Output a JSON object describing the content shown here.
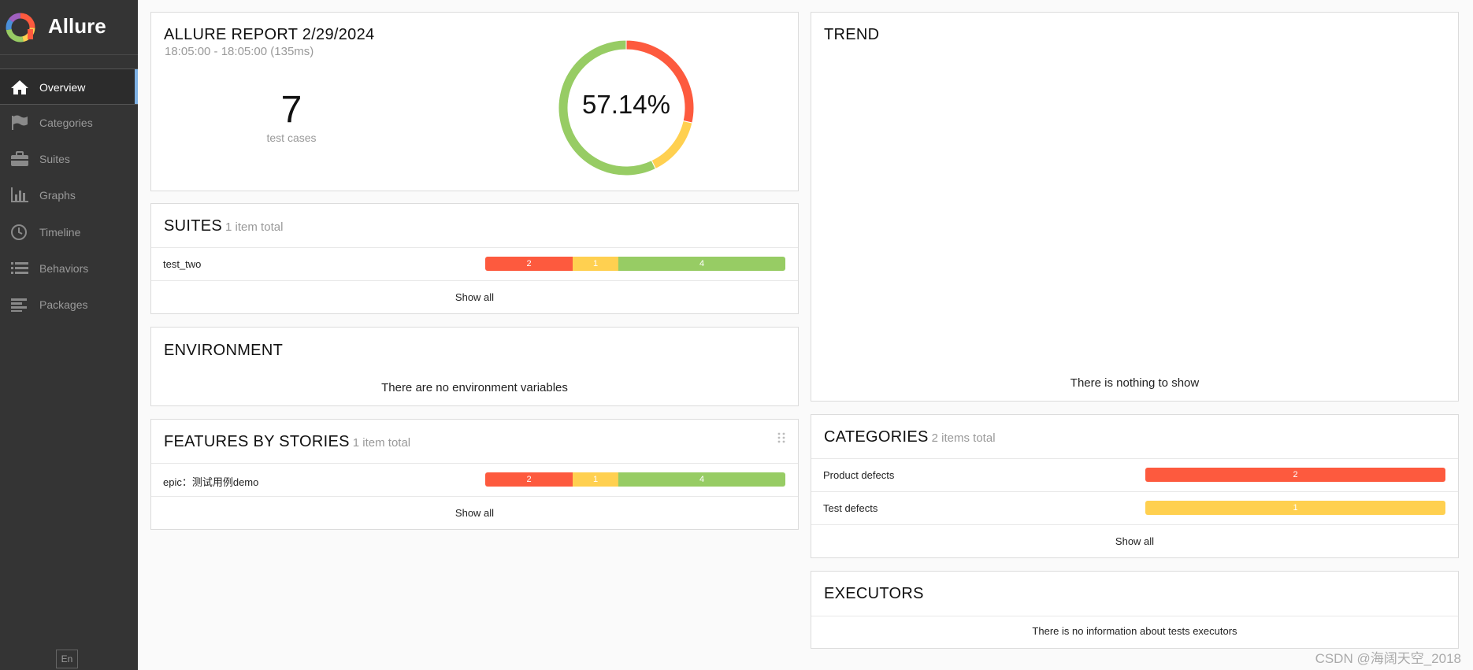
{
  "brand": {
    "name": "Allure"
  },
  "nav": [
    {
      "label": "Overview",
      "icon": "home-icon",
      "active": true
    },
    {
      "label": "Categories",
      "icon": "flag-icon"
    },
    {
      "label": "Suites",
      "icon": "briefcase-icon"
    },
    {
      "label": "Graphs",
      "icon": "bar-chart-icon"
    },
    {
      "label": "Timeline",
      "icon": "clock-icon"
    },
    {
      "label": "Behaviors",
      "icon": "list-icon"
    },
    {
      "label": "Packages",
      "icon": "align-left-icon"
    }
  ],
  "language": "En",
  "colors": {
    "failed": "#fd5a3e",
    "broken": "#ffd050",
    "passed": "#97cc64",
    "sidebar": "#343434",
    "accent": "#7fb2e5"
  },
  "summary": {
    "title": "ALLURE REPORT 2/29/2024",
    "time_range": "18:05:00 - 18:05:00 (135ms)",
    "test_count": "7",
    "test_count_label": "test cases",
    "success_rate": "57.14%",
    "donut": {
      "failed": 2,
      "broken": 1,
      "passed": 4
    }
  },
  "suites": {
    "title": "SUITES",
    "count": "1 item total",
    "rows": [
      {
        "label": "test_two",
        "failed": "2",
        "broken": "1",
        "passed": "4"
      }
    ],
    "show_all": "Show all"
  },
  "environment": {
    "title": "ENVIRONMENT",
    "empty": "There are no environment variables"
  },
  "features": {
    "title": "FEATURES BY STORIES",
    "count": "1 item total",
    "rows": [
      {
        "label": "epic：测试用例demo",
        "failed": "2",
        "broken": "1",
        "passed": "4"
      }
    ],
    "show_all": "Show all"
  },
  "trend": {
    "title": "TREND",
    "empty": "There is nothing to show"
  },
  "categories": {
    "title": "CATEGORIES",
    "count": "2 items total",
    "rows": [
      {
        "label": "Product defects",
        "value": "2"
      },
      {
        "label": "Test defects",
        "value": "1"
      }
    ],
    "show_all": "Show all"
  },
  "executors": {
    "title": "EXECUTORS",
    "empty": "There is no information about tests executors"
  },
  "watermark": "CSDN @海阔天空_2018"
}
